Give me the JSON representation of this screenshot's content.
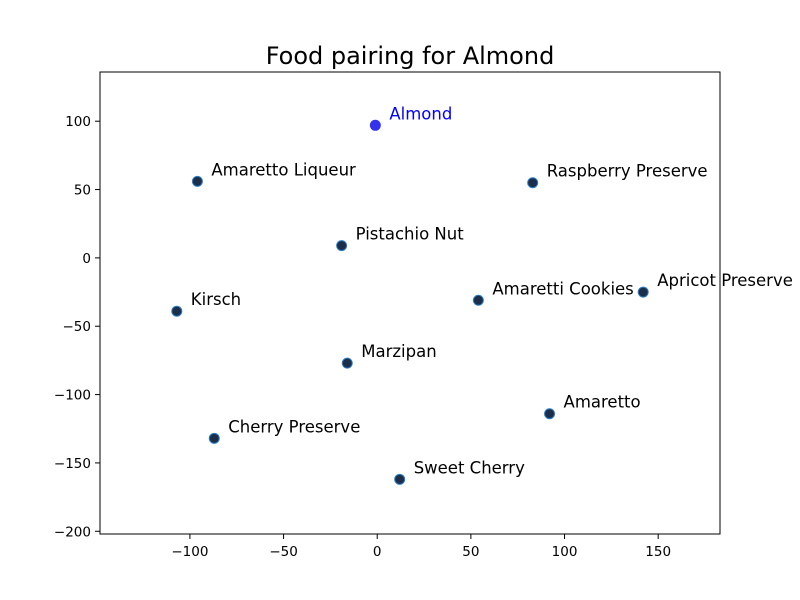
{
  "chart_data": {
    "type": "scatter",
    "title": "Food pairing for Almond",
    "xlabel": "",
    "ylabel": "",
    "xlim": [
      -148,
      183
    ],
    "ylim": [
      -202,
      136
    ],
    "xticks": [
      -100,
      -50,
      0,
      50,
      100,
      150
    ],
    "yticks": [
      -200,
      -150,
      -100,
      -50,
      0,
      50,
      100
    ],
    "grid": false,
    "colors": {
      "highlight_point": "#3333ee",
      "highlight_label": "#0000ff",
      "point": "#1c2e4a",
      "point_edge": "#2a7fc9"
    },
    "points": [
      {
        "label": "Almond",
        "x": -1,
        "y": 97,
        "highlight": true
      },
      {
        "label": "Amaretto Liqueur",
        "x": -96,
        "y": 56
      },
      {
        "label": "Raspberry Preserve",
        "x": 83,
        "y": 55
      },
      {
        "label": "Pistachio Nut",
        "x": -19,
        "y": 9
      },
      {
        "label": "Amaretti Cookies",
        "x": 54,
        "y": -31
      },
      {
        "label": "Apricot Preserve",
        "x": 142,
        "y": -25
      },
      {
        "label": "Kirsch",
        "x": -107,
        "y": -39
      },
      {
        "label": "Marzipan",
        "x": -16,
        "y": -77
      },
      {
        "label": "Amaretto",
        "x": 92,
        "y": -114
      },
      {
        "label": "Cherry Preserve",
        "x": -87,
        "y": -132
      },
      {
        "label": "Sweet Cherry",
        "x": 12,
        "y": -162
      }
    ]
  }
}
